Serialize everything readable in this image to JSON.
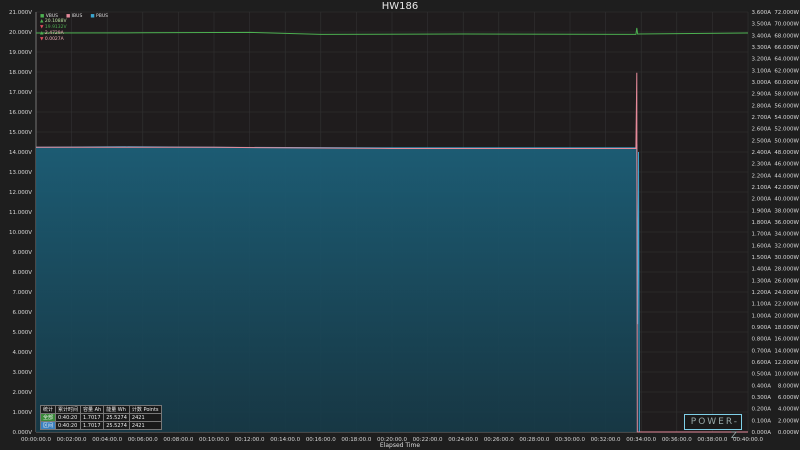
{
  "title": "HW186",
  "chart_data": {
    "type": "line",
    "title": "HW186",
    "xlabel": "Elapsed Time",
    "xlim": [
      0,
      40
    ],
    "x_ticks": [
      "00:00:00.0",
      "00:02:00.0",
      "00:04:00.0",
      "00:06:00.0",
      "00:08:00.0",
      "00:10:00.0",
      "00:12:00.0",
      "00:14:00.0",
      "00:16:00.0",
      "00:18:00.0",
      "00:20:00.0",
      "00:22:00.0",
      "00:24:00.0",
      "00:26:00.0",
      "00:28:00.0",
      "00:30:00.0",
      "00:32:00.0",
      "00:34:00.0",
      "00:36:00.0",
      "00:38:00.0",
      "00:40:00.0"
    ],
    "y_left": {
      "unit": "V",
      "lim": [
        0,
        21
      ],
      "step": 1
    },
    "y_right_current": {
      "unit": "A",
      "lim": [
        0,
        3.6
      ],
      "step": 0.1
    },
    "y_right_power": {
      "unit": "W",
      "lim": [
        0,
        72
      ],
      "step": 2
    },
    "grid": true,
    "legend_placement": "top-left",
    "series": [
      {
        "name": "VBUS",
        "color": "#4caf50",
        "axis": "V",
        "points": [
          [
            0,
            19.95
          ],
          [
            6,
            19.96
          ],
          [
            12,
            19.98
          ],
          [
            16,
            19.88
          ],
          [
            24,
            19.9
          ],
          [
            33.7,
            19.88
          ],
          [
            33.75,
            20.2
          ],
          [
            33.8,
            19.9
          ],
          [
            40.33,
            19.95
          ]
        ]
      },
      {
        "name": "IBUS",
        "color": "#e58a9a",
        "axis": "A",
        "points": [
          [
            0,
            2.44
          ],
          [
            10,
            2.44
          ],
          [
            20,
            2.43
          ],
          [
            33.7,
            2.43
          ],
          [
            33.75,
            3.08
          ],
          [
            33.78,
            0
          ],
          [
            40.33,
            0
          ]
        ]
      },
      {
        "name": "PBUS",
        "color": "#3aa6d0",
        "axis": "W",
        "fill": true,
        "points": [
          [
            0,
            48.8
          ],
          [
            5,
            48.9
          ],
          [
            10,
            48.8
          ],
          [
            20,
            48.7
          ],
          [
            33.7,
            48.7
          ],
          [
            33.75,
            49.3
          ],
          [
            33.8,
            18.5
          ],
          [
            33.85,
            48
          ],
          [
            33.9,
            0
          ],
          [
            40.33,
            0
          ]
        ]
      }
    ]
  },
  "legend": {
    "labels": [
      "VBUS",
      "IBUS",
      "PBUS"
    ],
    "values": [
      {
        "dir": "up",
        "text": "20.1088V",
        "color": "#4caf50"
      },
      {
        "dir": "down",
        "text": "19.9132V",
        "color": "#4caf50"
      },
      {
        "dir": "up",
        "text": "2.4729A",
        "color": "#e05060"
      },
      {
        "dir": "down",
        "text": "0.0027A",
        "color": "#e05060"
      }
    ]
  },
  "stats": {
    "headers": [
      "统计",
      "累计时间",
      "容量 Ah",
      "能量 Wh",
      "计数 Points"
    ],
    "rows": [
      [
        "全部",
        "0:40:20",
        "1.7017",
        "25.5274",
        "2421"
      ],
      [
        "区间",
        "0:40:20",
        "1.7017",
        "25.5274",
        "2421"
      ]
    ]
  },
  "logo": "POWER-Z"
}
